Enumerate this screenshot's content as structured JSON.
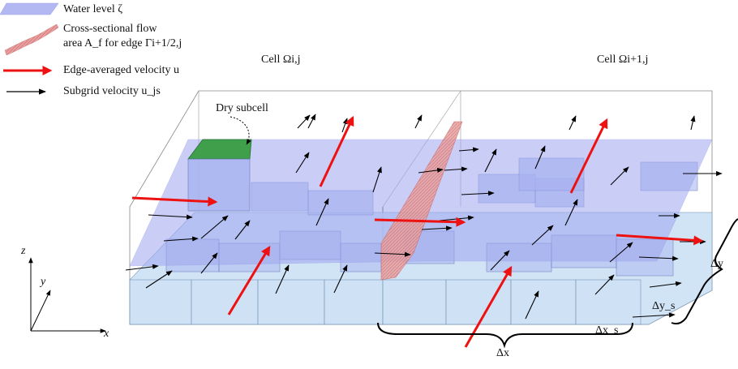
{
  "legend": {
    "water_level": "Water level ζ",
    "cross_section_line1": "Cross-sectional flow",
    "cross_section_line2": "area A_f for edge Γi+1/2,j",
    "edge_velocity": "Edge-averaged velocity u",
    "subgrid_velocity": "Subgrid velocity u_js"
  },
  "labels": {
    "cell_left": "Cell Ωi,j",
    "cell_right": "Cell Ωi+1,j",
    "dry_subcell": "Dry subcell",
    "axis_z": "z",
    "axis_y": "y",
    "axis_x": "x",
    "delta_x": "Δx",
    "delta_xs": "Δx_s",
    "delta_y": "Δy",
    "delta_ys": "Δy_s"
  },
  "colors": {
    "water": "#9fa6f0",
    "base_cell": "#c9e0f4",
    "dry_top": "#3f9f4a",
    "cross_section": "#e8a0a0",
    "edge_arrow": "#ee1111",
    "subgrid_arrow": "#000000"
  }
}
